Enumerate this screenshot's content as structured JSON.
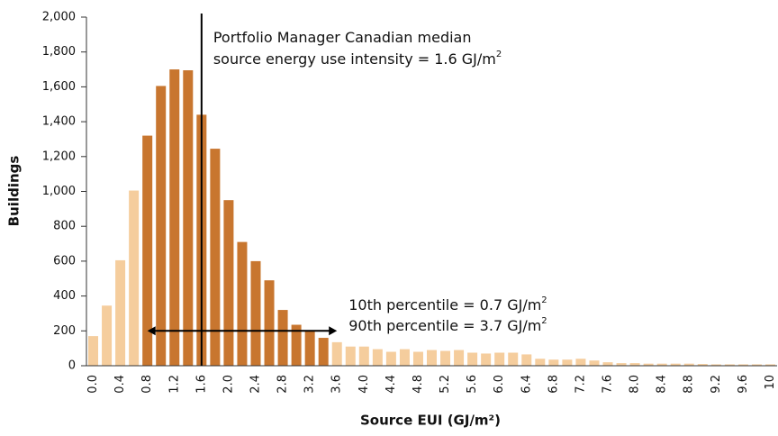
{
  "chart_data": {
    "type": "bar",
    "xlabel": "Source EUI (GJ/m²)",
    "ylabel": "Buildings",
    "categories": [
      "0.0",
      null,
      "0.4",
      null,
      "0.8",
      null,
      "1.2",
      null,
      "1.6",
      null,
      "2.0",
      null,
      "2.4",
      null,
      "2.8",
      null,
      "3.2",
      null,
      "3.6",
      null,
      "4.0",
      null,
      "4.4",
      null,
      "4.8",
      null,
      "5.2",
      null,
      "5.6",
      null,
      "6.0",
      null,
      "6.4",
      null,
      "6.8",
      null,
      "7.2",
      null,
      "7.6",
      null,
      "8.0",
      null,
      "8.4",
      null,
      "8.8",
      null,
      "9.2",
      null,
      "9.6",
      null,
      "10"
    ],
    "values": [
      170,
      345,
      605,
      1005,
      1320,
      1605,
      1700,
      1695,
      1440,
      1245,
      950,
      710,
      600,
      490,
      320,
      235,
      200,
      160,
      135,
      110,
      110,
      95,
      80,
      95,
      80,
      90,
      85,
      90,
      75,
      70,
      75,
      75,
      65,
      40,
      35,
      35,
      40,
      30,
      20,
      15,
      15,
      12,
      12,
      12,
      12,
      10,
      8,
      8,
      8,
      8,
      8
    ],
    "colors": [
      "#f5cd9d",
      "#f5cd9d",
      "#f5cd9d",
      "#f5cd9d",
      "#c8762f",
      "#c8762f",
      "#c8762f",
      "#c8762f",
      "#c8762f",
      "#c8762f",
      "#c8762f",
      "#c8762f",
      "#c8762f",
      "#c8762f",
      "#c8762f",
      "#c8762f",
      "#c8762f",
      "#c8762f",
      "#f5cd9d",
      "#f5cd9d",
      "#f5cd9d",
      "#f5cd9d",
      "#f5cd9d",
      "#f5cd9d",
      "#f5cd9d",
      "#f5cd9d",
      "#f5cd9d",
      "#f5cd9d",
      "#f5cd9d",
      "#f5cd9d",
      "#f5cd9d",
      "#f5cd9d",
      "#f5cd9d",
      "#f5cd9d",
      "#f5cd9d",
      "#f5cd9d",
      "#f5cd9d",
      "#f5cd9d",
      "#f5cd9d",
      "#f5cd9d",
      "#f5cd9d",
      "#f5cd9d",
      "#f5cd9d",
      "#f5cd9d",
      "#f5cd9d",
      "#f5cd9d",
      "#f5cd9d",
      "#f5cd9d",
      "#f5cd9d",
      "#f5cd9d",
      "#f5cd9d"
    ],
    "ylim": [
      0,
      2000
    ],
    "yticks": [
      0,
      200,
      400,
      600,
      800,
      {
        "value": 1000,
        "label": "1,000"
      },
      {
        "value": 1200,
        "label": "1,200"
      },
      {
        "value": 1400,
        "label": "1,400"
      },
      {
        "value": 1600,
        "label": "1,600"
      },
      {
        "value": 1800,
        "label": "1,800"
      },
      {
        "value": 2000,
        "label": "2,000"
      }
    ],
    "median": {
      "x": 1.6,
      "text": [
        "Portfolio Manager Canadian median",
        "source energy use intensity = 1.6 GJ/m"
      ],
      "sup": "2"
    },
    "percentiles": {
      "x": [
        0.8,
        3.6
      ],
      "y": 200,
      "text": [
        "10th percentile  = 0.7 GJ/m",
        "90th percentile  = 3.7 GJ/m"
      ],
      "sup": "2"
    }
  }
}
